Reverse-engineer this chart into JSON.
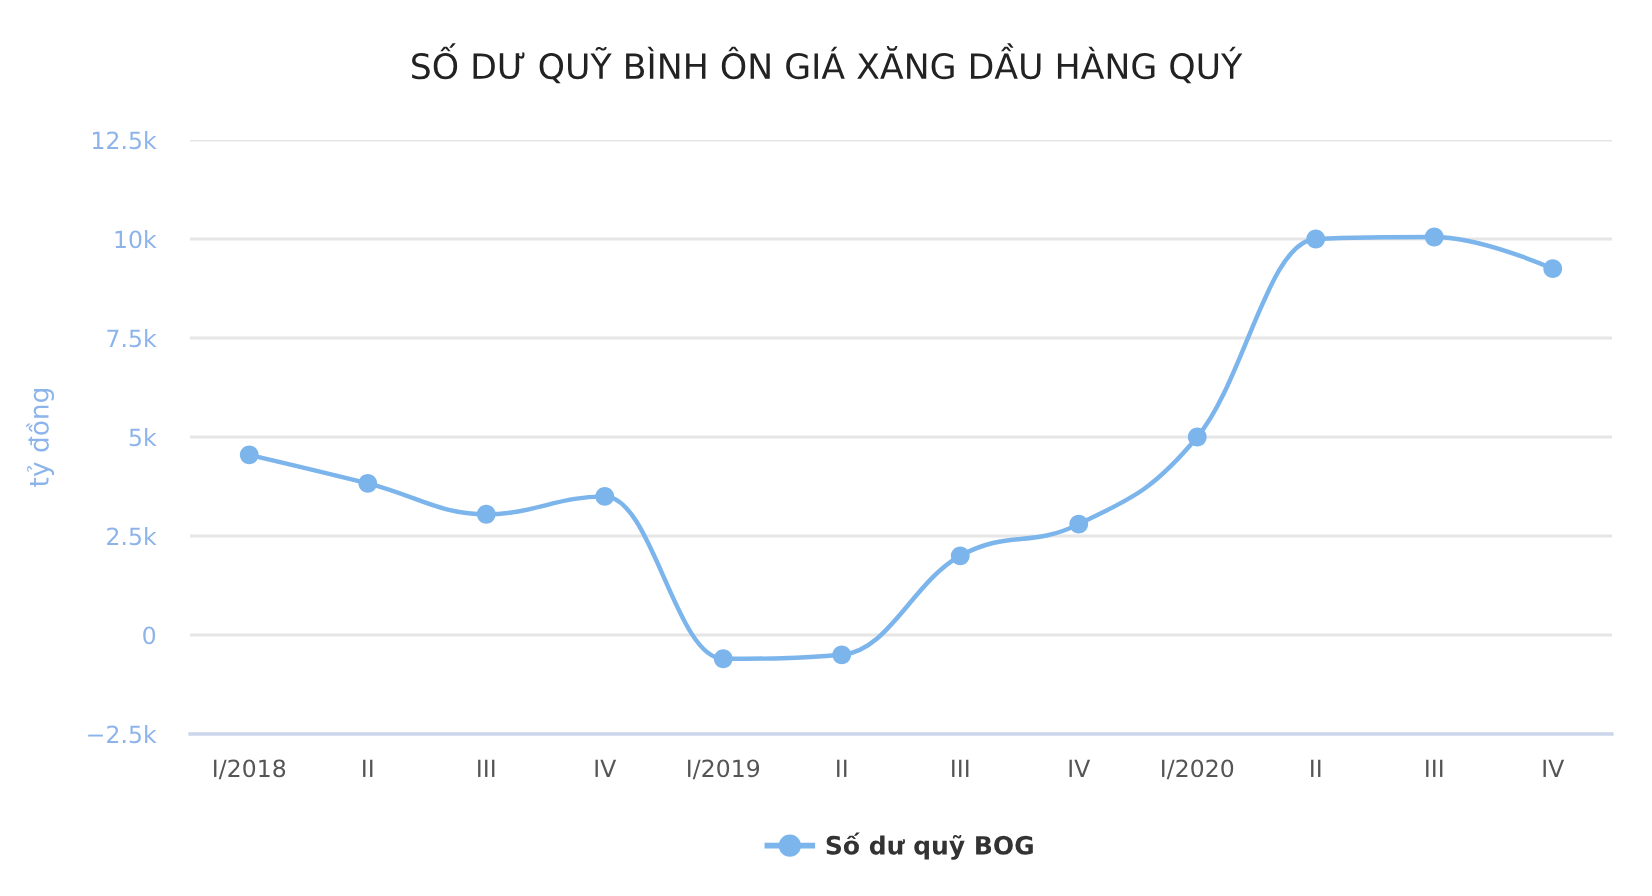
{
  "chart_data": {
    "type": "line",
    "title": "SỐ DƯ QUỸ BÌNH ÔN GIÁ XĂNG DẦU HÀNG QUÝ",
    "ylabel": "tỷ đồng",
    "categories": [
      "I/2018",
      "II",
      "III",
      "IV",
      "I/2019",
      "II",
      "III",
      "IV",
      "I/2020",
      "II",
      "III",
      "IV"
    ],
    "series": [
      {
        "name": "Số dư quỹ BOG",
        "color": "#7cb5ec",
        "values": [
          4550,
          3830,
          3050,
          3500,
          -600,
          -500,
          2000,
          2800,
          5000,
          10000,
          10050,
          9250
        ]
      }
    ],
    "ylim": [
      -2500,
      12500
    ],
    "yticks": [
      {
        "value": -2500,
        "label": "−2.5k"
      },
      0,
      {
        "value": 2500,
        "label": "2.5k"
      },
      {
        "value": 5000,
        "label": "5k"
      },
      {
        "value": 7500,
        "label": "7.5k"
      },
      {
        "value": 10000,
        "label": "10k"
      },
      {
        "value": 12500,
        "label": "12.5k"
      }
    ],
    "grid": "y",
    "legend": "bottom",
    "marker": "circle",
    "line_style": "solid"
  }
}
